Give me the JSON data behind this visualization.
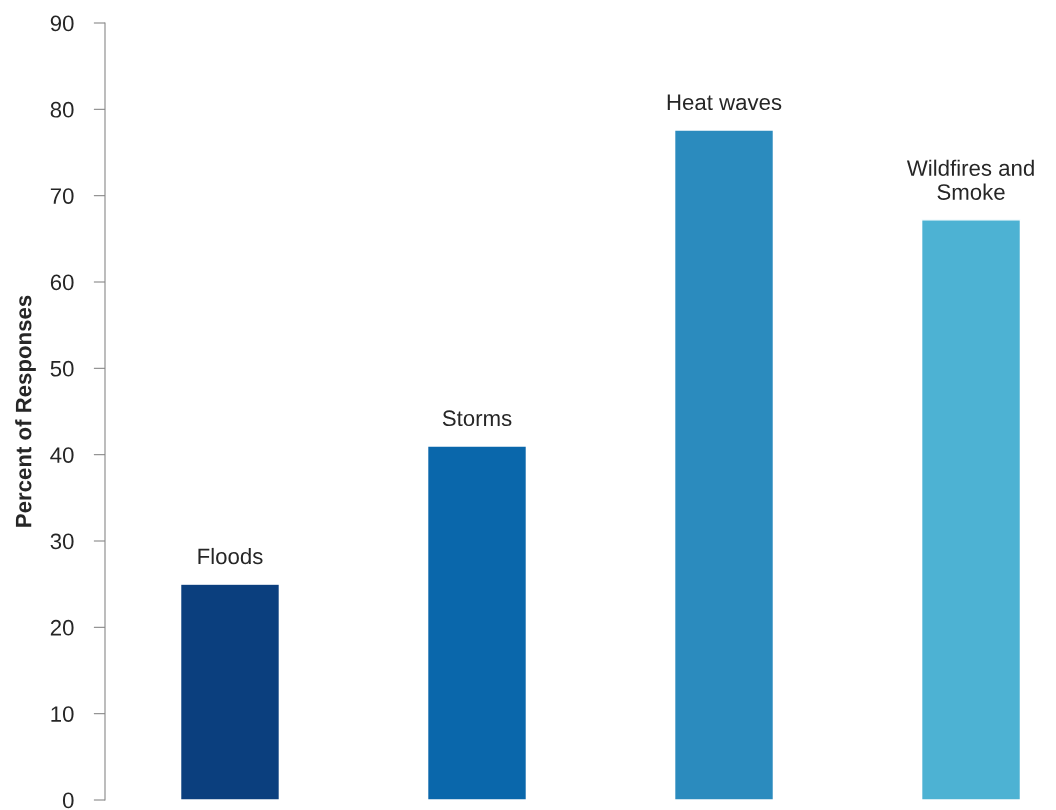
{
  "chart_data": {
    "type": "bar",
    "ylabel": "Percent of Responses",
    "categories": [
      "Floods",
      "Storms",
      "Heat waves",
      "Wildfires and Smoke"
    ],
    "values": [
      25,
      41,
      77.6,
      67.2
    ],
    "colors": [
      "#0b3f7e",
      "#0a67ab",
      "#2b8bbe",
      "#4db2d3"
    ],
    "ylim": [
      0,
      90
    ],
    "yticks": [
      0,
      10,
      20,
      30,
      40,
      50,
      60,
      70,
      80,
      90
    ],
    "grid": false,
    "legend": false
  }
}
